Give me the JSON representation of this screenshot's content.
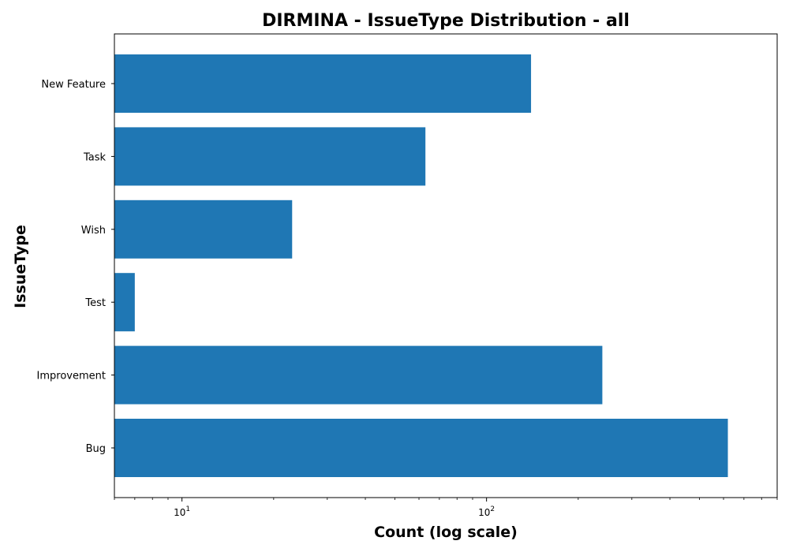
{
  "chart_data": {
    "type": "bar",
    "orientation": "horizontal",
    "title": "DIRMINA - IssueType Distribution - all",
    "xlabel": "Count (log scale)",
    "ylabel": "IssueType",
    "x_scale": "log",
    "xlim": [
      6,
      900
    ],
    "x_ticks": [
      10,
      100
    ],
    "x_tick_labels": [
      {
        "base": "10",
        "exp": "1"
      },
      {
        "base": "10",
        "exp": "2"
      }
    ],
    "categories": [
      "Bug",
      "Improvement",
      "Test",
      "Wish",
      "Task",
      "New Feature"
    ],
    "values": [
      620,
      240,
      7,
      23,
      63,
      140
    ],
    "bar_color": "#1f77b4",
    "grid": false,
    "legend": "none"
  }
}
